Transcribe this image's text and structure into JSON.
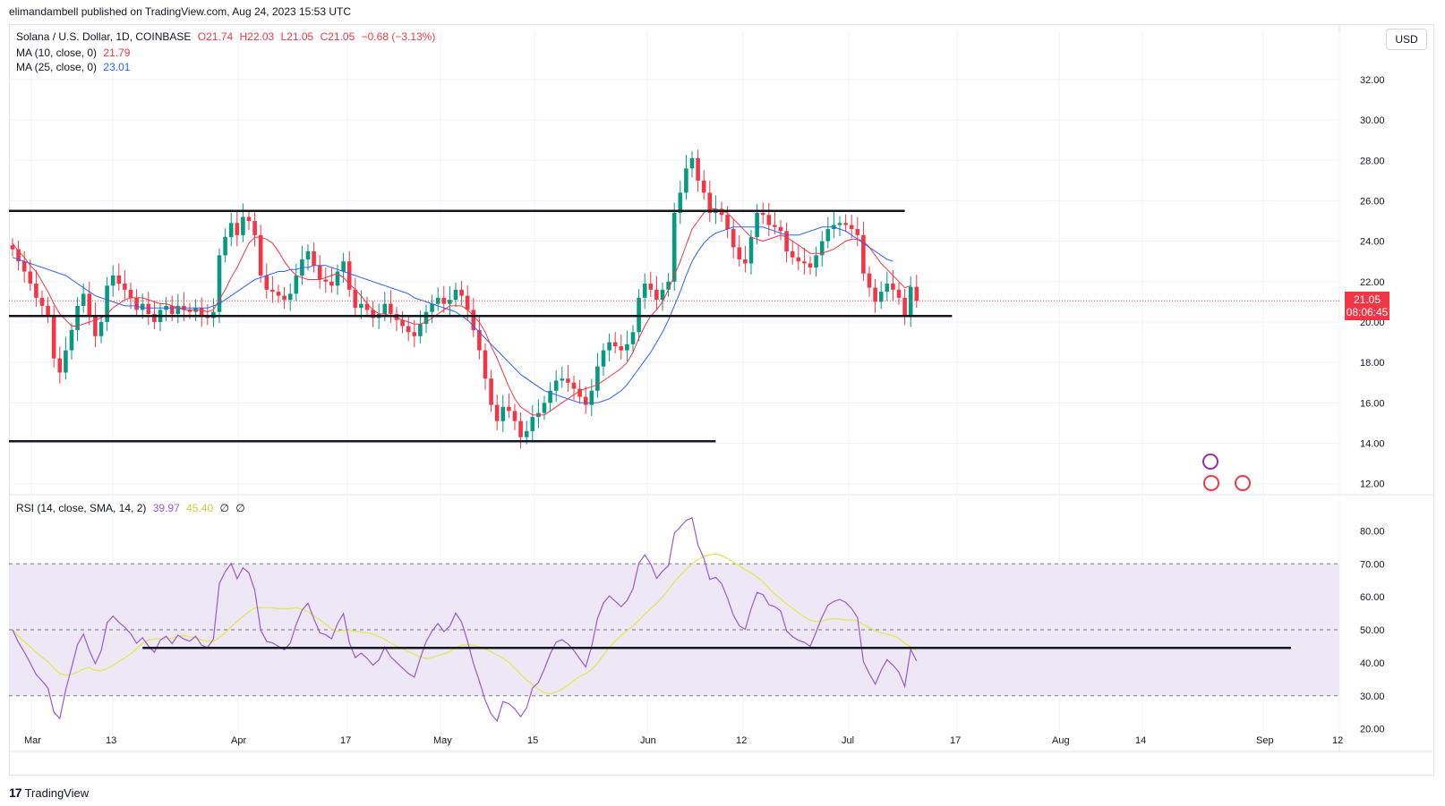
{
  "header": {
    "publisher": "elimandambell published on TradingView.com, Aug 24, 2023 15:53 UTC"
  },
  "legend": {
    "symbol": "Solana / U.S. Dollar, 1D, COINBASE",
    "o": "O21.74",
    "h": "H22.03",
    "l": "L21.05",
    "c": "C21.05",
    "chg": "−0.68 (−3.13%)",
    "ma10_label": "MA (10, close, 0)",
    "ma10_value": "21.79",
    "ma25_label": "MA (25, close, 0)",
    "ma25_value": "23.01",
    "rsi_label": "RSI (14, close, SMA, 14, 2)",
    "rsi_value": "39.97",
    "rsi_sma_value": "45.40",
    "rsi_extra1": "∅",
    "rsi_extra2": "∅"
  },
  "currency_button": "USD",
  "price_tag": {
    "price": "21.05",
    "countdown": "08:06:45"
  },
  "footer": {
    "brand": "TradingView"
  },
  "colors": {
    "up": "#089981",
    "down": "#f23645",
    "ma10": "#f23645",
    "ma25": "#2962ff",
    "rsi": "#9c59d1",
    "rsi_sma": "#e3e85a",
    "band": "#ede7f6"
  },
  "chart_data": [
    {
      "type": "candlestick",
      "y_ticks": [
        "32.00",
        "30.00",
        "28.00",
        "26.00",
        "24.00",
        "22.00",
        "20.00",
        "18.00",
        "16.00",
        "14.00",
        "12.00"
      ],
      "x_ticks": [
        "Mar",
        "13",
        "Apr",
        "17",
        "May",
        "15",
        "Jun",
        "12",
        "Jul",
        "17",
        "Aug",
        "14",
        "Sep",
        "12"
      ],
      "ylim": [
        11.5,
        33.5
      ],
      "close": [
        23.6,
        23.0,
        22.5,
        21.9,
        21.2,
        20.8,
        20.3,
        18.2,
        17.5,
        18.6,
        19.6,
        20.8,
        21.4,
        20.3,
        19.3,
        20.0,
        21.8,
        22.3,
        21.9,
        21.6,
        21.2,
        20.6,
        20.9,
        20.4,
        20.0,
        20.6,
        20.8,
        20.4,
        20.8,
        20.6,
        20.5,
        20.7,
        20.3,
        20.2,
        20.5,
        23.3,
        24.2,
        24.9,
        24.3,
        25.2,
        25.0,
        24.3,
        22.3,
        21.6,
        21.5,
        21.3,
        21.1,
        21.4,
        22.3,
        23.1,
        23.5,
        22.8,
        22.1,
        22.0,
        21.8,
        22.5,
        23.0,
        21.6,
        20.7,
        20.9,
        20.6,
        20.2,
        20.4,
        20.9,
        20.4,
        20.1,
        19.8,
        19.5,
        19.3,
        19.9,
        20.5,
        20.9,
        21.2,
        20.9,
        21.1,
        21.6,
        21.3,
        20.6,
        19.6,
        18.6,
        17.2,
        15.9,
        15.1,
        15.8,
        15.6,
        15.1,
        14.3,
        14.6,
        15.3,
        15.5,
        16.0,
        16.6,
        17.1,
        17.2,
        17.0,
        16.7,
        16.3,
        15.9,
        16.6,
        17.8,
        18.6,
        19.0,
        18.8,
        18.6,
        18.9,
        19.5,
        21.2,
        21.9,
        21.6,
        21.1,
        21.6,
        22.0,
        25.4,
        26.4,
        27.6,
        28.1,
        27.0,
        26.4,
        25.4,
        25.6,
        25.3,
        24.6,
        23.7,
        23.1,
        22.9,
        24.2,
        25.4,
        25.3,
        24.8,
        24.7,
        24.5,
        23.5,
        23.2,
        23.0,
        22.9,
        22.7,
        23.3,
        24.0,
        24.6,
        24.8,
        24.9,
        24.8,
        24.6,
        24.3,
        22.4,
        21.7,
        21.0,
        21.5,
        21.9,
        21.6,
        21.2,
        20.3,
        21.74,
        21.05
      ],
      "ma10": [
        23.9,
        23.5,
        23.2,
        22.8,
        22.5,
        22.0,
        21.5,
        20.9,
        20.4,
        20.1,
        19.8,
        19.8,
        19.9,
        20.0,
        20.1,
        20.2,
        20.4,
        20.7,
        20.9,
        21.1,
        21.2,
        21.2,
        21.2,
        21.1,
        21.0,
        20.9,
        20.9,
        20.8,
        20.7,
        20.6,
        20.6,
        20.6,
        20.6,
        20.5,
        20.6,
        21.1,
        21.6,
        22.2,
        22.7,
        23.3,
        23.9,
        24.2,
        24.2,
        24.1,
        23.9,
        23.5,
        23.0,
        22.6,
        22.3,
        22.2,
        22.1,
        22.1,
        22.1,
        22.2,
        22.3,
        22.4,
        22.2,
        21.9,
        21.6,
        21.3,
        20.9,
        20.6,
        20.4,
        20.4,
        20.3,
        20.2,
        20.1,
        20.0,
        19.9,
        19.9,
        20.0,
        20.2,
        20.4,
        20.6,
        20.8,
        20.8,
        20.8,
        20.6,
        20.3,
        20.0,
        19.5,
        18.8,
        18.2,
        17.5,
        16.8,
        16.2,
        15.8,
        15.6,
        15.4,
        15.4,
        15.4,
        15.6,
        15.8,
        16.0,
        16.2,
        16.4,
        16.6,
        16.7,
        16.8,
        16.9,
        17.1,
        17.3,
        17.5,
        17.7,
        18.0,
        18.5,
        19.2,
        19.8,
        20.3,
        20.6,
        21.0,
        21.6,
        22.3,
        23.0,
        23.8,
        24.6,
        25.0,
        25.4,
        25.6,
        25.6,
        25.5,
        25.4,
        25.1,
        24.8,
        24.5,
        24.2,
        24.1,
        24.0,
        24.1,
        24.2,
        24.3,
        24.2,
        24.0,
        23.8,
        23.6,
        23.4,
        23.4,
        23.4,
        23.5,
        23.6,
        23.8,
        24.0,
        24.1,
        24.1,
        24.0,
        23.7,
        23.3,
        22.9,
        22.6,
        22.3,
        22.0,
        21.7,
        21.79
      ],
      "ma25": [
        23.2,
        23.1,
        23.0,
        22.9,
        22.8,
        22.7,
        22.6,
        22.5,
        22.4,
        22.3,
        22.1,
        21.9,
        21.7,
        21.5,
        21.3,
        21.2,
        21.1,
        21.0,
        20.9,
        20.8,
        20.8,
        20.8,
        20.7,
        20.7,
        20.7,
        20.7,
        20.7,
        20.7,
        20.7,
        20.7,
        20.7,
        20.7,
        20.7,
        20.7,
        20.8,
        20.9,
        21.1,
        21.3,
        21.5,
        21.7,
        21.9,
        22.1,
        22.2,
        22.3,
        22.4,
        22.5,
        22.5,
        22.6,
        22.6,
        22.7,
        22.7,
        22.8,
        22.8,
        22.8,
        22.7,
        22.6,
        22.5,
        22.4,
        22.3,
        22.2,
        22.1,
        22.0,
        21.9,
        21.8,
        21.7,
        21.6,
        21.5,
        21.4,
        21.2,
        21.1,
        21.0,
        20.9,
        20.8,
        20.7,
        20.6,
        20.5,
        20.3,
        20.1,
        19.8,
        19.5,
        19.2,
        18.9,
        18.6,
        18.3,
        18.0,
        17.7,
        17.4,
        17.2,
        17.0,
        16.8,
        16.6,
        16.5,
        16.4,
        16.3,
        16.2,
        16.1,
        16.0,
        16.0,
        16.0,
        16.0,
        16.1,
        16.2,
        16.4,
        16.6,
        16.9,
        17.3,
        17.7,
        18.1,
        18.5,
        19.0,
        19.5,
        20.1,
        20.8,
        21.5,
        22.3,
        23.0,
        23.5,
        23.9,
        24.2,
        24.4,
        24.5,
        24.6,
        24.7,
        24.7,
        24.7,
        24.7,
        24.7,
        24.7,
        24.6,
        24.5,
        24.4,
        24.3,
        24.3,
        24.3,
        24.4,
        24.5,
        24.6,
        24.7,
        24.7,
        24.7,
        24.6,
        24.5,
        24.3,
        24.1,
        23.9,
        23.7,
        23.5,
        23.3,
        23.1,
        23.01
      ],
      "levels": [
        {
          "value": 25.5,
          "from_bar": 0,
          "to_bar": 151
        },
        {
          "value": 20.3,
          "from_bar": 0,
          "to_bar": 159
        },
        {
          "value": 14.1,
          "from_bar": 0,
          "to_bar": 119
        }
      ]
    },
    {
      "type": "line",
      "name": "RSI",
      "y_ticks": [
        "80.00",
        "70.00",
        "60.00",
        "50.00",
        "40.00",
        "30.00",
        "20.00"
      ],
      "ylim": [
        18,
        85
      ],
      "band": [
        30,
        70
      ],
      "midline": 50,
      "trendline": {
        "value": 44.5,
        "from_bar": 22,
        "to_bar": 161
      }
    }
  ]
}
